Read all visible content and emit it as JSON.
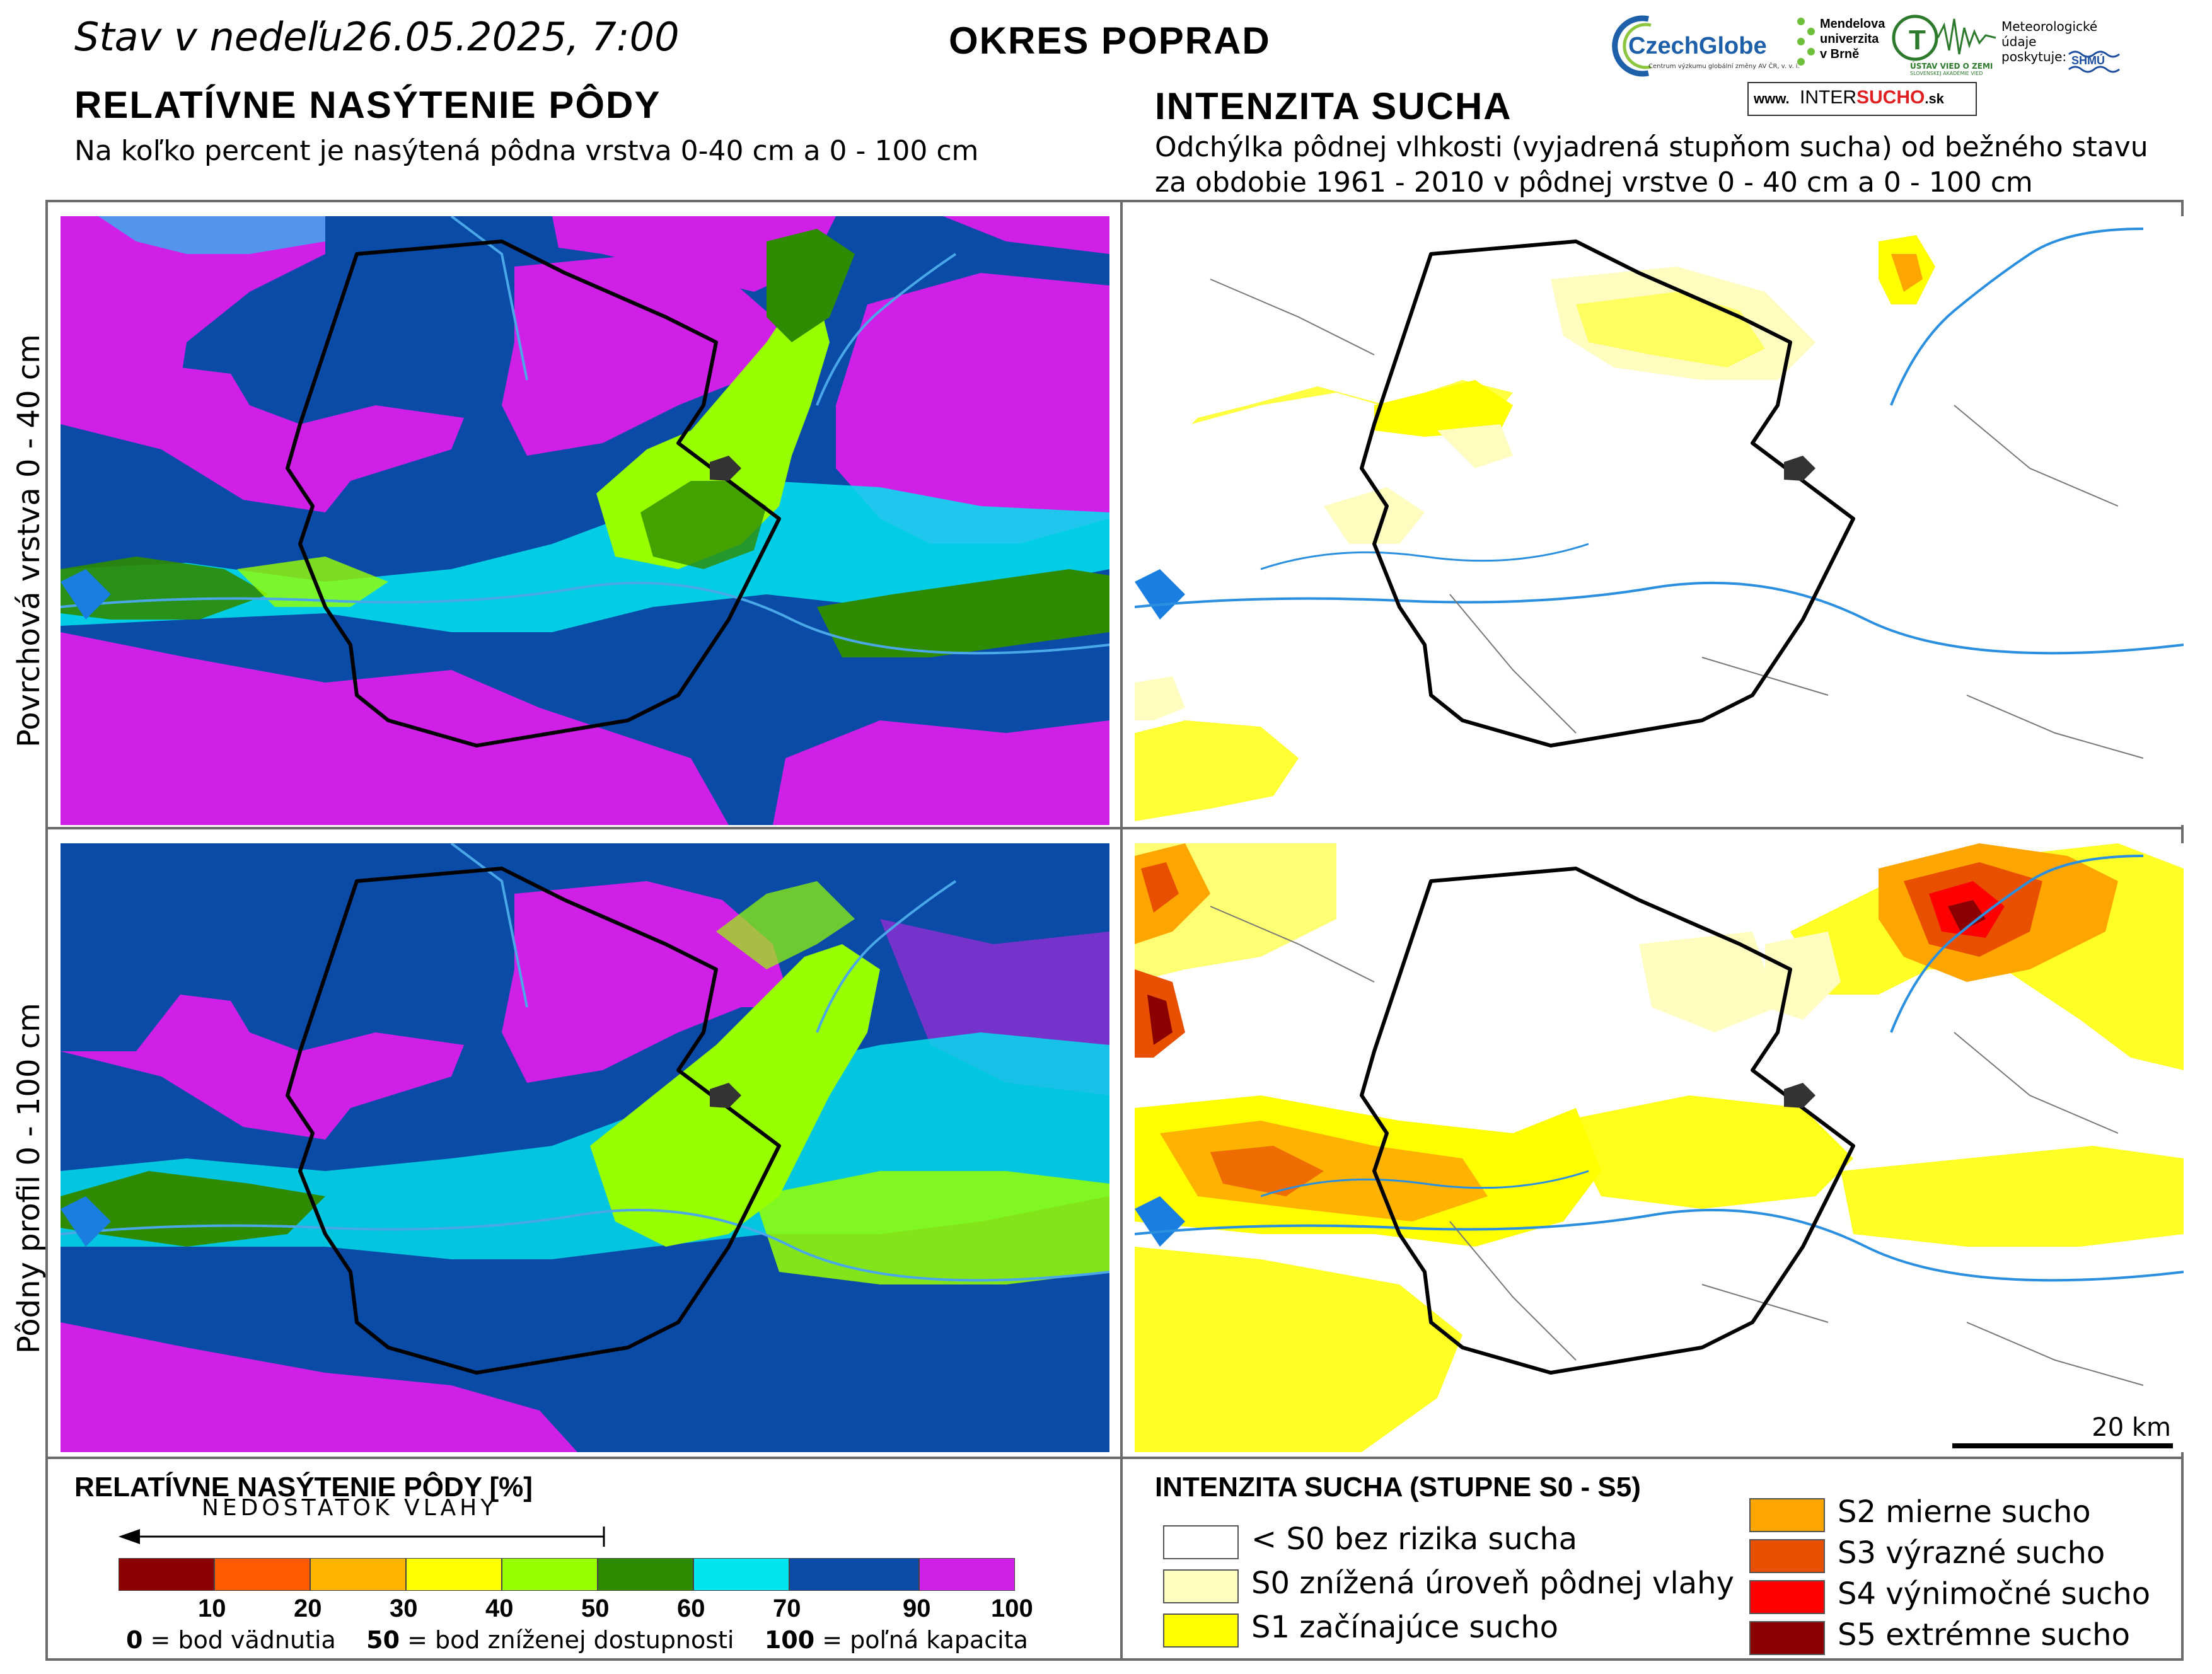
{
  "header": {
    "date_line": "Stav v nedeľu26.05.2025, 7:00",
    "district": "OKRES  POPRAD",
    "left_title": "RELATÍVNE NASÝTENIE PÔDY",
    "left_subtitle": "Na koľko percent je nasýtená pôdna vrstva 0-40 cm a 0 - 100 cm",
    "right_title": "INTENZITA SUCHA",
    "right_subtitle_1": "Odchýlka pôdnej vlhkosti (vyjadrená stupňom sucha) od bežného stavu",
    "right_subtitle_2": "za obdobie 1961 - 2010 v pôdnej vrstve 0 - 40 cm a 0 - 100 cm"
  },
  "logos": {
    "czechglobe": "CzechGlobe",
    "czechglobe_sub": "Centrum výzkumu globální změny AV ČR, v. v. i.",
    "mendel_1": "Mendelova",
    "mendel_2": "univerzita",
    "mendel_3": "v Brně",
    "uvz": "ÚSTAV VIED O ZEMI",
    "uvz_sub": "SLOVENSKEJ AKADÉMIE VIED",
    "meteo_1": "Meteorologické",
    "meteo_2": "údaje",
    "meteo_3": "poskytuje:",
    "shmu": "SHMÚ",
    "intersucho_www": "www.",
    "intersucho_a": "INTER",
    "intersucho_b": "SUCHO",
    "intersucho_c": ".sk"
  },
  "row_labels": {
    "top": "Povrchová vrstva 0 - 40 cm",
    "bottom": "Pôdny profil 0 - 100 cm"
  },
  "scale": {
    "label": "20 km"
  },
  "saturation_legend": {
    "title": "RELATÍVNE NASÝTENIE PÔDY [%]",
    "arrow_label": "NEDOSTATOK VLAHY",
    "colors": [
      "#8b0000",
      "#ff5a00",
      "#ffb400",
      "#ffff00",
      "#98ff00",
      "#2e8b00",
      "#00e5ee",
      "#0a4ba8",
      "#d020e8"
    ],
    "ticks": [
      "10",
      "20",
      "30",
      "40",
      "50",
      "60",
      "70",
      "90",
      "100"
    ],
    "note_0": "0",
    "note_0_text": " = bod vädnutia",
    "note_50": "50",
    "note_50_text": " = bod zníženej dostupnosti",
    "note_100": "100",
    "note_100_text": " = poľná kapacita"
  },
  "drought_legend": {
    "title": "INTENZITA SUCHA (STUPNE S0 - S5)",
    "items": [
      {
        "label": "< S0 bez rizika sucha",
        "color": "#ffffff"
      },
      {
        "label": "S0 znížená úroveň pôdnej vlahy",
        "color": "#fffcc0"
      },
      {
        "label": "S1 začínajúce sucho",
        "color": "#ffff00"
      },
      {
        "label": "S2 mierne sucho",
        "color": "#ffa500"
      },
      {
        "label": "S3 výrazné sucho",
        "color": "#e85000"
      },
      {
        "label": "S4 výnimočné sucho",
        "color": "#ff0000"
      },
      {
        "label": "S5 extrémne sucho",
        "color": "#8b0000"
      }
    ]
  }
}
